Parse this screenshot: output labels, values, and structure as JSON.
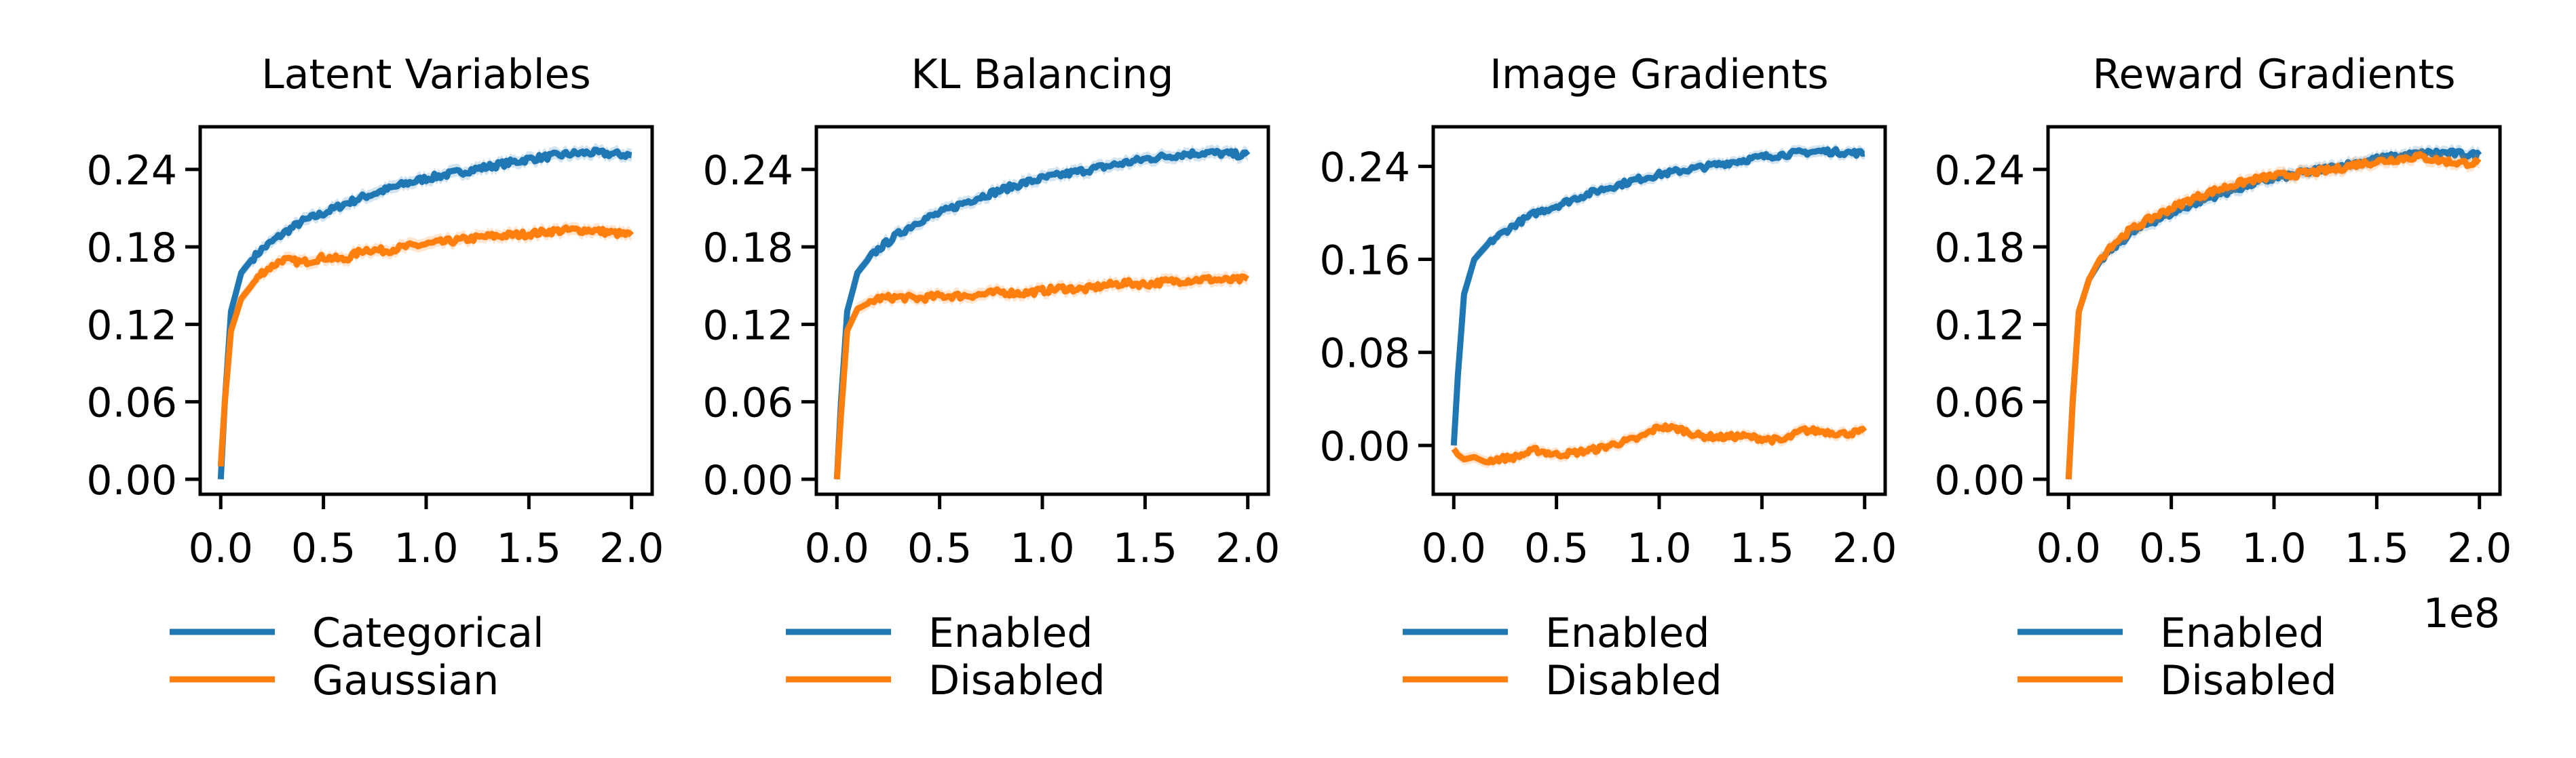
{
  "chart_data": [
    {
      "type": "line",
      "title": "Latent Variables",
      "xlim": [
        -0.1,
        2.1
      ],
      "ylim": [
        -0.0116,
        0.273
      ],
      "xticks": [
        "0.0",
        "0.5",
        "1.0",
        "1.5",
        "2.0"
      ],
      "yticks": [
        "0.00",
        "0.06",
        "0.12",
        "0.18",
        "0.24"
      ],
      "x": [
        0,
        0.02,
        0.05,
        0.1,
        0.15,
        0.2,
        0.3,
        0.4,
        0.5,
        0.6,
        0.7,
        0.8,
        0.9,
        1.0,
        1.1,
        1.2,
        1.3,
        1.4,
        1.5,
        1.6,
        1.7,
        1.8,
        1.9,
        2.0
      ],
      "series": [
        {
          "name": "Categorical",
          "color": "#1f77b4",
          "values": [
            0.0,
            0.06,
            0.13,
            0.16,
            0.17,
            0.178,
            0.19,
            0.2,
            0.206,
            0.213,
            0.219,
            0.224,
            0.229,
            0.233,
            0.236,
            0.239,
            0.242,
            0.245,
            0.248,
            0.25,
            0.252,
            0.253,
            0.252,
            0.251
          ]
        },
        {
          "name": "Gaussian",
          "color": "#ff7f0e",
          "values": [
            0.01,
            0.06,
            0.115,
            0.14,
            0.15,
            0.16,
            0.17,
            0.168,
            0.172,
            0.17,
            0.178,
            0.177,
            0.18,
            0.182,
            0.184,
            0.186,
            0.188,
            0.189,
            0.19,
            0.192,
            0.193,
            0.193,
            0.191,
            0.189
          ]
        }
      ],
      "legend_position": "bottom",
      "grid": false
    },
    {
      "type": "line",
      "title": "KL Balancing",
      "xlim": [
        -0.1,
        2.1
      ],
      "ylim": [
        -0.0116,
        0.273
      ],
      "xticks": [
        "0.0",
        "0.5",
        "1.0",
        "1.5",
        "2.0"
      ],
      "yticks": [
        "0.00",
        "0.06",
        "0.12",
        "0.18",
        "0.24"
      ],
      "x": [
        0,
        0.02,
        0.05,
        0.1,
        0.15,
        0.2,
        0.3,
        0.4,
        0.5,
        0.6,
        0.7,
        0.8,
        0.9,
        1.0,
        1.1,
        1.2,
        1.3,
        1.4,
        1.5,
        1.6,
        1.7,
        1.8,
        1.9,
        2.0
      ],
      "series": [
        {
          "name": "Enabled",
          "color": "#1f77b4",
          "values": [
            0.0,
            0.06,
            0.13,
            0.16,
            0.17,
            0.178,
            0.19,
            0.2,
            0.206,
            0.213,
            0.219,
            0.224,
            0.229,
            0.233,
            0.236,
            0.239,
            0.242,
            0.245,
            0.248,
            0.25,
            0.252,
            0.253,
            0.252,
            0.251
          ]
        },
        {
          "name": "Disabled",
          "color": "#ff7f0e",
          "values": [
            0.0,
            0.05,
            0.115,
            0.132,
            0.136,
            0.14,
            0.141,
            0.14,
            0.142,
            0.142,
            0.143,
            0.145,
            0.144,
            0.146,
            0.148,
            0.147,
            0.15,
            0.152,
            0.151,
            0.153,
            0.154,
            0.155,
            0.154,
            0.155
          ]
        }
      ],
      "legend_position": "bottom",
      "grid": false
    },
    {
      "type": "line",
      "title": "Image Gradients",
      "xlim": [
        -0.1,
        2.1
      ],
      "ylim": [
        -0.042,
        0.274
      ],
      "xticks": [
        "0.0",
        "0.5",
        "1.0",
        "1.5",
        "2.0"
      ],
      "yticks": [
        "0.00",
        "0.08",
        "0.16",
        "0.24"
      ],
      "x": [
        0,
        0.02,
        0.05,
        0.1,
        0.15,
        0.2,
        0.3,
        0.4,
        0.5,
        0.6,
        0.7,
        0.8,
        0.9,
        1.0,
        1.1,
        1.2,
        1.3,
        1.4,
        1.5,
        1.6,
        1.7,
        1.8,
        1.9,
        2.0
      ],
      "series": [
        {
          "name": "Enabled",
          "color": "#1f77b4",
          "values": [
            0.0,
            0.06,
            0.13,
            0.16,
            0.17,
            0.178,
            0.19,
            0.2,
            0.206,
            0.213,
            0.219,
            0.224,
            0.229,
            0.233,
            0.236,
            0.239,
            0.242,
            0.245,
            0.248,
            0.25,
            0.252,
            0.253,
            0.252,
            0.251
          ]
        },
        {
          "name": "Disabled",
          "color": "#ff7f0e",
          "values": [
            -0.003,
            -0.008,
            -0.012,
            -0.01,
            -0.014,
            -0.012,
            -0.01,
            -0.004,
            -0.008,
            -0.006,
            -0.003,
            0.002,
            0.006,
            0.016,
            0.014,
            0.008,
            0.007,
            0.008,
            0.006,
            0.004,
            0.013,
            0.012,
            0.01,
            0.012
          ]
        }
      ],
      "legend_position": "bottom",
      "grid": false
    },
    {
      "type": "line",
      "title": "Reward Gradients",
      "xlim": [
        -0.1,
        2.1
      ],
      "ylim": [
        -0.0116,
        0.273
      ],
      "xticks": [
        "0.0",
        "0.5",
        "1.0",
        "1.5",
        "2.0"
      ],
      "yticks": [
        "0.00",
        "0.06",
        "0.12",
        "0.18",
        "0.24"
      ],
      "x_offset_label": "1e8",
      "x": [
        0,
        0.02,
        0.05,
        0.1,
        0.15,
        0.2,
        0.3,
        0.4,
        0.5,
        0.6,
        0.7,
        0.8,
        0.9,
        1.0,
        1.1,
        1.2,
        1.3,
        1.4,
        1.5,
        1.6,
        1.7,
        1.8,
        1.9,
        2.0
      ],
      "series": [
        {
          "name": "Enabled",
          "color": "#1f77b4",
          "values": [
            0.0,
            0.06,
            0.13,
            0.155,
            0.168,
            0.177,
            0.19,
            0.199,
            0.206,
            0.213,
            0.219,
            0.224,
            0.229,
            0.233,
            0.236,
            0.239,
            0.242,
            0.245,
            0.248,
            0.25,
            0.252,
            0.253,
            0.252,
            0.251
          ]
        },
        {
          "name": "Disabled",
          "color": "#ff7f0e",
          "values": [
            0.0,
            0.06,
            0.13,
            0.155,
            0.17,
            0.18,
            0.193,
            0.202,
            0.21,
            0.217,
            0.223,
            0.228,
            0.232,
            0.235,
            0.236,
            0.238,
            0.24,
            0.244,
            0.246,
            0.248,
            0.25,
            0.247,
            0.245,
            0.245
          ]
        }
      ],
      "legend_position": "bottom",
      "grid": false
    }
  ]
}
